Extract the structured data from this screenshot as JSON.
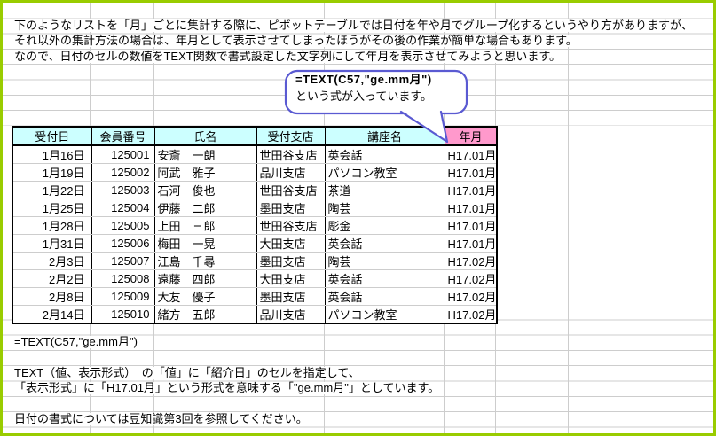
{
  "sheet": {
    "intro_lines": [
      "下のようなリストを「月」ごとに集計する際に、ピボットテーブルでは日付を年や月でグループ化するというやり方がありますが、",
      "それ以外の集計方法の場合は、年月として表示させてしまったほうがその後の作業が簡単な場合もあります。",
      "なので、日付のセルの数値をTEXT関数で書式設定した文字列にして年月を表示させてみようと思います。"
    ],
    "callout": {
      "formula": "=TEXT(C57,\"ge.mm月\")",
      "caption": "という式が入っています。"
    },
    "table": {
      "headers": [
        "受付日",
        "会員番号",
        "氏名",
        "受付支店",
        "講座名",
        "年月"
      ],
      "rows": [
        [
          "1月16日",
          "125001",
          "安斎　一朗",
          "世田谷支店",
          "英会話",
          "H17.01月"
        ],
        [
          "1月19日",
          "125002",
          "阿武　雅子",
          "品川支店",
          "パソコン教室",
          "H17.01月"
        ],
        [
          "1月22日",
          "125003",
          "石河　俊也",
          "世田谷支店",
          "茶道",
          "H17.01月"
        ],
        [
          "1月25日",
          "125004",
          "伊藤　二郎",
          "墨田支店",
          "陶芸",
          "H17.01月"
        ],
        [
          "1月28日",
          "125005",
          "上田　三郎",
          "世田谷支店",
          "彫金",
          "H17.01月"
        ],
        [
          "1月31日",
          "125006",
          "梅田　一晃",
          "大田支店",
          "英会話",
          "H17.01月"
        ],
        [
          "2月3日",
          "125007",
          "江島　千尋",
          "墨田支店",
          "陶芸",
          "H17.02月"
        ],
        [
          "2月2日",
          "125008",
          "遠藤　四郎",
          "大田支店",
          "英会話",
          "H17.02月"
        ],
        [
          "2月8日",
          "125009",
          "大友　優子",
          "墨田支店",
          "英会話",
          "H17.02月"
        ],
        [
          "2月14日",
          "125010",
          "緒方　五郎",
          "品川支店",
          "パソコン教室",
          "H17.02月"
        ]
      ]
    },
    "formula_cell": "=TEXT(C57,\"ge.mm月\")",
    "explanation_lines": [
      "TEXT（値、表示形式）　の「値」に「紹介日」のセルを指定して、",
      "「表示形式」に「H17.01月」という形式を意味する「\"ge.mm月\"」としています。"
    ],
    "footer_note": "日付の書式については豆知識第3回を参照してください。",
    "colors": {
      "frame": "#99CC00",
      "gridline": "#CDCDCD",
      "header_fill": "#CCFFFF",
      "accent_fill": "#FF99CC",
      "callout_stroke": "#5A5AD2"
    }
  }
}
